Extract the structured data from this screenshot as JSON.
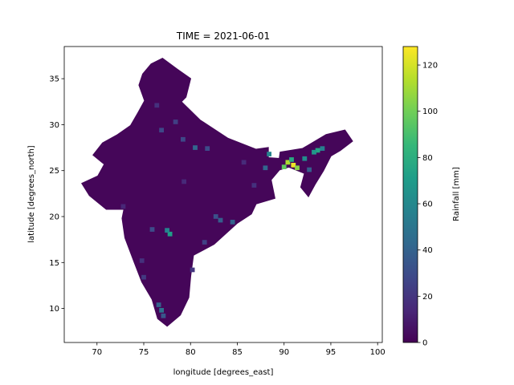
{
  "chart_data": {
    "type": "heatmap",
    "title": "TIME = 2021-06-01",
    "xlabel": "longitude [degrees_east]",
    "ylabel": "latitude [degrees_north]",
    "xlim": [
      66.5,
      100.5
    ],
    "ylim": [
      6.3,
      38.5
    ],
    "x_ticks": [
      70,
      75,
      80,
      85,
      90,
      95,
      100
    ],
    "y_ticks": [
      10,
      15,
      20,
      25,
      30,
      35
    ],
    "grid": false,
    "colorbar": {
      "label": "Rainfall [mm]",
      "range": [
        0,
        128
      ],
      "ticks": [
        0,
        20,
        40,
        60,
        80,
        100,
        120
      ],
      "colormap": [
        "#440154",
        "#482878",
        "#3e4989",
        "#31688e",
        "#26828e",
        "#1f9e89",
        "#35b779",
        "#6ece58",
        "#b5de2b",
        "#fde725"
      ]
    },
    "land_value_mm": 2,
    "ocean_color": "#ffffff",
    "land_outline_lonlat": [
      [
        77.0,
        37.2
      ],
      [
        78.6,
        36.0
      ],
      [
        80.0,
        35.0
      ],
      [
        79.5,
        33.0
      ],
      [
        79.0,
        32.5
      ],
      [
        81.0,
        30.5
      ],
      [
        84.0,
        28.5
      ],
      [
        87.0,
        27.3
      ],
      [
        88.3,
        27.5
      ],
      [
        88.3,
        26.4
      ],
      [
        89.5,
        26.3
      ],
      [
        89.6,
        27.0
      ],
      [
        92.0,
        27.4
      ],
      [
        94.5,
        28.9
      ],
      [
        96.5,
        29.4
      ],
      [
        97.3,
        28.2
      ],
      [
        96.0,
        27.2
      ],
      [
        95.0,
        26.6
      ],
      [
        94.2,
        25.0
      ],
      [
        93.3,
        23.5
      ],
      [
        92.6,
        22.2
      ],
      [
        91.8,
        23.2
      ],
      [
        92.2,
        24.7
      ],
      [
        90.5,
        25.4
      ],
      [
        89.5,
        25.1
      ],
      [
        88.6,
        24.0
      ],
      [
        89.0,
        22.0
      ],
      [
        87.0,
        21.4
      ],
      [
        86.5,
        20.3
      ],
      [
        85.0,
        19.3
      ],
      [
        82.5,
        17.0
      ],
      [
        80.3,
        15.8
      ],
      [
        80.0,
        13.5
      ],
      [
        79.8,
        11.2
      ],
      [
        78.9,
        9.3
      ],
      [
        77.5,
        8.1
      ],
      [
        76.5,
        8.9
      ],
      [
        75.9,
        11.0
      ],
      [
        74.8,
        12.9
      ],
      [
        74.0,
        15.0
      ],
      [
        73.0,
        17.7
      ],
      [
        72.7,
        19.8
      ],
      [
        72.9,
        20.8
      ],
      [
        71.0,
        20.8
      ],
      [
        69.2,
        22.3
      ],
      [
        68.4,
        23.6
      ],
      [
        70.1,
        24.4
      ],
      [
        70.8,
        25.7
      ],
      [
        69.6,
        26.7
      ],
      [
        70.6,
        28.0
      ],
      [
        72.2,
        28.9
      ],
      [
        73.6,
        29.9
      ],
      [
        74.4,
        31.3
      ],
      [
        75.1,
        32.6
      ],
      [
        74.5,
        34.3
      ],
      [
        74.9,
        35.5
      ],
      [
        75.8,
        36.6
      ],
      [
        77.0,
        37.2
      ]
    ],
    "rain_cells": [
      {
        "lon": 91.0,
        "lat": 25.6,
        "mm": 125
      },
      {
        "lon": 90.4,
        "lat": 25.9,
        "mm": 112
      },
      {
        "lon": 91.4,
        "lat": 25.3,
        "mm": 105
      },
      {
        "lon": 90.0,
        "lat": 25.4,
        "mm": 96
      },
      {
        "lon": 90.8,
        "lat": 26.2,
        "mm": 78
      },
      {
        "lon": 92.2,
        "lat": 26.3,
        "mm": 62
      },
      {
        "lon": 93.6,
        "lat": 27.2,
        "mm": 75
      },
      {
        "lon": 93.2,
        "lat": 27.0,
        "mm": 68
      },
      {
        "lon": 94.1,
        "lat": 27.4,
        "mm": 55
      },
      {
        "lon": 92.7,
        "lat": 25.1,
        "mm": 38
      },
      {
        "lon": 88.4,
        "lat": 26.8,
        "mm": 58
      },
      {
        "lon": 88.0,
        "lat": 25.3,
        "mm": 42
      },
      {
        "lon": 77.8,
        "lat": 18.1,
        "mm": 72
      },
      {
        "lon": 77.5,
        "lat": 18.5,
        "mm": 58
      },
      {
        "lon": 76.9,
        "lat": 9.8,
        "mm": 48
      },
      {
        "lon": 76.6,
        "lat": 10.4,
        "mm": 40
      },
      {
        "lon": 77.1,
        "lat": 9.2,
        "mm": 35
      },
      {
        "lon": 84.5,
        "lat": 19.4,
        "mm": 40
      },
      {
        "lon": 83.2,
        "lat": 19.6,
        "mm": 38
      },
      {
        "lon": 82.7,
        "lat": 20.0,
        "mm": 32
      },
      {
        "lon": 75.9,
        "lat": 18.6,
        "mm": 30
      },
      {
        "lon": 80.5,
        "lat": 27.5,
        "mm": 42
      },
      {
        "lon": 81.8,
        "lat": 27.4,
        "mm": 30
      },
      {
        "lon": 79.2,
        "lat": 28.4,
        "mm": 28
      },
      {
        "lon": 76.9,
        "lat": 29.4,
        "mm": 28
      },
      {
        "lon": 78.4,
        "lat": 30.3,
        "mm": 24
      },
      {
        "lon": 81.5,
        "lat": 17.2,
        "mm": 25
      },
      {
        "lon": 80.2,
        "lat": 14.2,
        "mm": 20
      },
      {
        "lon": 75.0,
        "lat": 13.4,
        "mm": 22
      },
      {
        "lon": 74.8,
        "lat": 15.2,
        "mm": 18
      },
      {
        "lon": 76.4,
        "lat": 32.1,
        "mm": 18
      },
      {
        "lon": 85.7,
        "lat": 25.9,
        "mm": 16
      },
      {
        "lon": 86.8,
        "lat": 23.4,
        "mm": 18
      },
      {
        "lon": 72.8,
        "lat": 21.1,
        "mm": 14
      },
      {
        "lon": 79.3,
        "lat": 23.8,
        "mm": 15
      }
    ]
  }
}
